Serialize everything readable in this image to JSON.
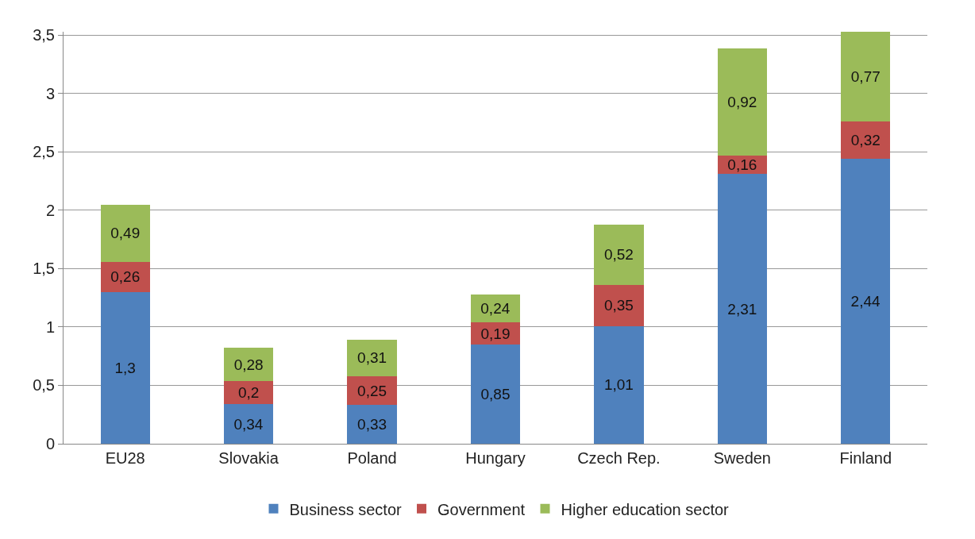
{
  "chart_data": {
    "type": "bar",
    "stacked": true,
    "categories": [
      "EU28",
      "Slovakia",
      "Poland",
      "Hungary",
      "Czech Rep.",
      "Sweden",
      "Finland"
    ],
    "series": [
      {
        "name": "Business sector",
        "color": "#4f81bd",
        "values": [
          1.3,
          0.34,
          0.33,
          0.85,
          1.01,
          2.31,
          2.44
        ],
        "value_labels": [
          "1,3",
          "0,34",
          "0,33",
          "0,85",
          "1,01",
          "2,31",
          "2,44"
        ]
      },
      {
        "name": "Government",
        "color": "#c0504d",
        "values": [
          0.26,
          0.2,
          0.25,
          0.19,
          0.35,
          0.16,
          0.32
        ],
        "value_labels": [
          "0,26",
          "0,2",
          "0,25",
          "0,19",
          "0,35",
          "0,16",
          "0,32"
        ]
      },
      {
        "name": "Higher education sector",
        "color": "#9bbb59",
        "values": [
          0.49,
          0.28,
          0.31,
          0.24,
          0.52,
          0.92,
          0.77
        ],
        "value_labels": [
          "0,49",
          "0,28",
          "0,31",
          "0,24",
          "0,52",
          "0,92",
          "0,77"
        ]
      }
    ],
    "ylim": [
      0,
      3.53
    ],
    "yticks": [
      0,
      {
        "value": 0.5,
        "label": "0,5"
      },
      1,
      {
        "value": 1.5,
        "label": "1,5"
      },
      2,
      {
        "value": 2.5,
        "label": "2,5"
      },
      3,
      {
        "value": 3.5,
        "label": "3,5"
      }
    ],
    "grid": "y",
    "legend": "bottom"
  }
}
